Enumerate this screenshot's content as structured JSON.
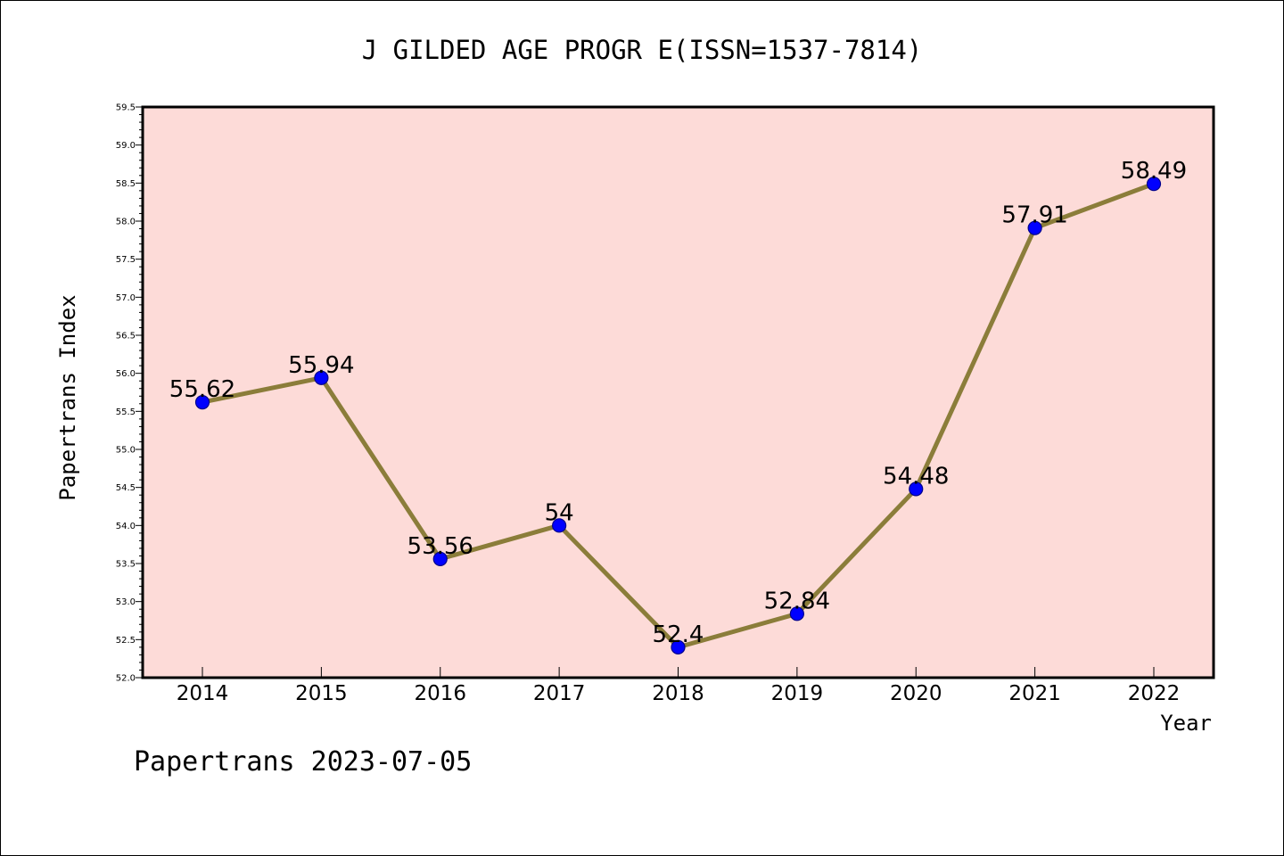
{
  "chart_data": {
    "type": "line",
    "title": "J GILDED AGE PROGR E(ISSN=1537-7814)",
    "xlabel": "Year",
    "ylabel": "Papertrans Index",
    "categories": [
      "2014",
      "2015",
      "2016",
      "2017",
      "2018",
      "2019",
      "2020",
      "2021",
      "2022"
    ],
    "series": [
      {
        "values": [
          55.62,
          55.94,
          53.56,
          54,
          52.4,
          52.84,
          54.48,
          57.91,
          58.49
        ],
        "labels": [
          "55.62",
          "55.94",
          "53.56",
          "54",
          "52.4",
          "52.84",
          "54.48",
          "57.91",
          "58.49"
        ]
      }
    ],
    "ylim": [
      52.0,
      59.5
    ],
    "yticks": [
      "52.0",
      "52.5",
      "53.0",
      "53.5",
      "54.0",
      "54.5",
      "55.0",
      "55.5",
      "56.0",
      "56.5",
      "57.0",
      "57.5",
      "58.0",
      "58.5",
      "59.0",
      "59.5"
    ],
    "grid": false,
    "colors": {
      "plot_background": "#fddbd8",
      "line": "#8b7d3a",
      "marker": "#0000ff",
      "marker_edge": "#00008b"
    }
  },
  "footer": "Papertrans 2023-07-05"
}
